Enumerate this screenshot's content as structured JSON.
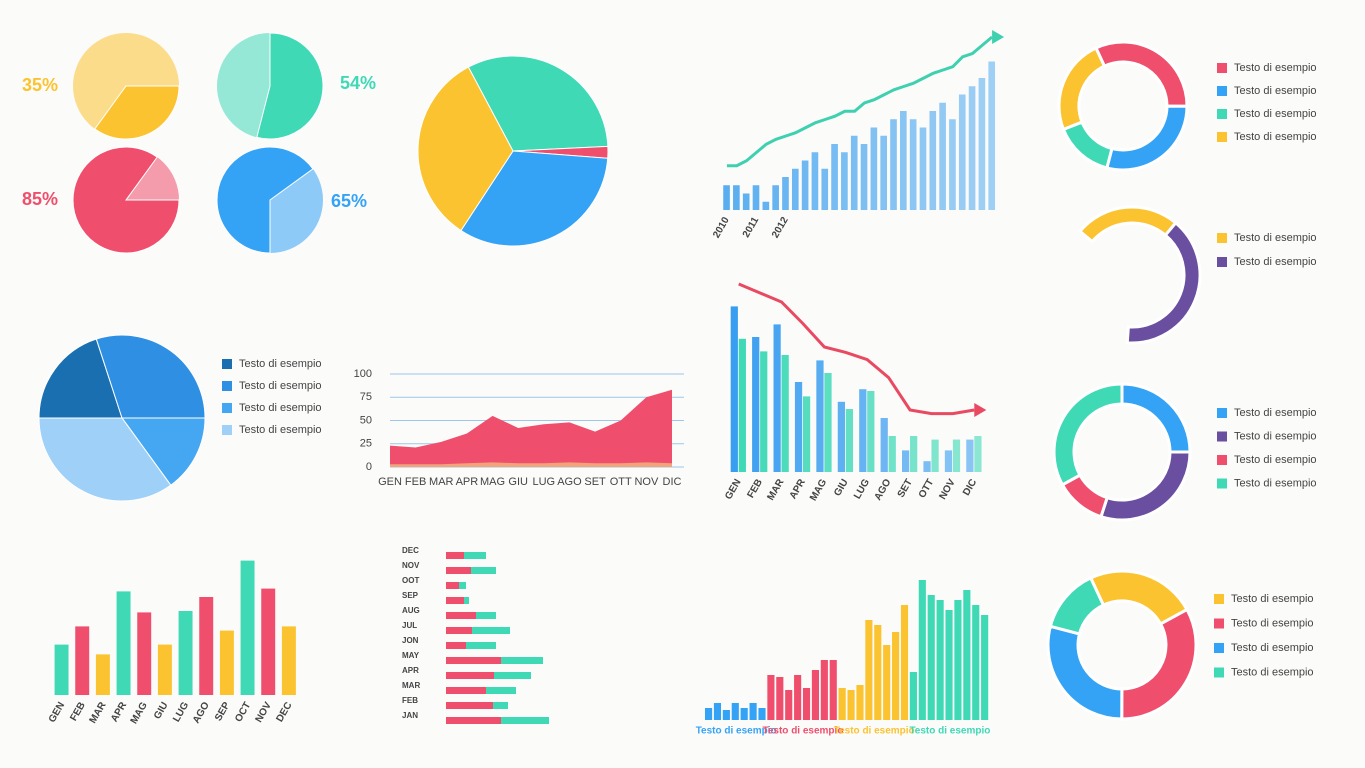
{
  "chart_data": [
    {
      "type": "pie",
      "values": [
        35
      ],
      "value_labels": [
        "35%"
      ],
      "color": "#fbc330"
    },
    {
      "type": "pie",
      "values": [
        54
      ],
      "value_labels": [
        "54%"
      ],
      "color": "#3fd9b6"
    },
    {
      "type": "pie",
      "values": [
        85
      ],
      "value_labels": [
        "85%"
      ],
      "color": "#ef4f6c"
    },
    {
      "type": "pie",
      "values": [
        65
      ],
      "value_labels": [
        "65%"
      ],
      "color": "#35a3f5"
    },
    {
      "type": "pie",
      "values": [
        32,
        2,
        33,
        33
      ],
      "colors": [
        "#3fd9b6",
        "#ef4f6c",
        "#35a3f5",
        "#fbc330"
      ]
    },
    {
      "type": "bar-line",
      "ylim": [
        0,
        100
      ],
      "categories": [
        "2010",
        null,
        null,
        "2011",
        null,
        null,
        "2012",
        null,
        null,
        null,
        null,
        null,
        null,
        null,
        null,
        null,
        null,
        null,
        null,
        null,
        null,
        null,
        null,
        null,
        null,
        null,
        null,
        null
      ],
      "series": [
        {
          "type": "bar",
          "color": "#5aaef0",
          "values": [
            15,
            15,
            10,
            15,
            5,
            15,
            20,
            25,
            30,
            35,
            25,
            40,
            35,
            45,
            40,
            50,
            45,
            55,
            60,
            55,
            50,
            60,
            65,
            55,
            70,
            75,
            80,
            90
          ]
        },
        {
          "type": "line",
          "color": "#3fd0b0",
          "values": [
            22,
            22,
            25,
            30,
            35,
            38,
            40,
            42,
            45,
            48,
            50,
            52,
            55,
            55,
            60,
            62,
            65,
            68,
            70,
            72,
            75,
            78,
            80,
            82,
            88,
            90,
            95,
            100
          ]
        }
      ]
    },
    {
      "type": "donut",
      "categories": [
        "Testo di esempio",
        "Testo di esempio",
        "Testo di esempio",
        "Testo di esempio"
      ],
      "colors": [
        "#ef4f6c",
        "#35a3f5",
        "#3fd9b6",
        "#fbc330"
      ],
      "values": [
        32,
        29,
        15,
        24
      ]
    },
    {
      "type": "donut",
      "categories": [
        "Testo di esempio",
        "Testo di esempio"
      ],
      "colors": [
        "#fbc330",
        "#6a4fa0"
      ],
      "values": [
        25,
        40
      ]
    },
    {
      "type": "pie",
      "categories": [
        "Testo di esempio",
        "Testo di esempio",
        "Testo di esempio",
        "Testo di esempio"
      ],
      "colors": [
        "#1a6fb0",
        "#2e8fe3",
        "#45a6f2",
        "#9fd0f7"
      ],
      "values": [
        20,
        30,
        15,
        35
      ]
    },
    {
      "type": "area",
      "categories": [
        "GEN",
        "FEB",
        "MAR",
        "APR",
        "MAG",
        "GIU",
        "LUG",
        "AGO",
        "SET",
        "OTT",
        "NOV",
        "DIC"
      ],
      "ylim": [
        0,
        100
      ],
      "yticks": [
        0,
        25,
        50,
        75,
        100
      ],
      "grid": true,
      "series": [
        {
          "color": "#ef4f6c",
          "values": [
            23,
            21,
            27,
            36,
            55,
            42,
            46,
            48,
            38,
            50,
            75,
            83
          ]
        },
        {
          "color": "#f3a37a",
          "values": [
            3,
            3,
            3,
            4,
            5,
            4,
            4,
            5,
            4,
            4,
            5,
            4
          ]
        }
      ]
    },
    {
      "type": "bar-line",
      "ylim": [
        0,
        100
      ],
      "categories": [
        "GEN",
        "FEB",
        "MAR",
        "APR",
        "MAG",
        "GIU",
        "LUG",
        "AGO",
        "SET",
        "OTT",
        "NOV",
        "DIC"
      ],
      "series": [
        {
          "type": "bar",
          "color": "#3a9ef0",
          "values": [
            92,
            75,
            82,
            50,
            62,
            39,
            46,
            30,
            12,
            6,
            12,
            18
          ]
        },
        {
          "type": "bar",
          "color": "#3fd9b6",
          "values": [
            74,
            67,
            65,
            42,
            55,
            35,
            45,
            20,
            20,
            18,
            18,
            20
          ]
        },
        {
          "type": "line",
          "color": "#e94a62",
          "values": [
            100,
            95,
            90,
            78,
            65,
            62,
            58,
            48,
            30,
            28,
            28,
            30
          ]
        }
      ]
    },
    {
      "type": "donut",
      "categories": [
        "Testo di esempio",
        "Testo di esempio",
        "Testo di esempio",
        "Testo di esempio"
      ],
      "colors": [
        "#35a3f5",
        "#6a4fa0",
        "#ef4f6c",
        "#3fd9b6"
      ],
      "values": [
        25,
        30,
        12,
        33
      ]
    },
    {
      "type": "donut",
      "categories": [
        "Testo di esempio",
        "Testo di esempio",
        "Testo di esempio",
        "Testo di esempio"
      ],
      "colors": [
        "#fbc330",
        "#ef4f6c",
        "#35a3f5",
        "#3fd9b6"
      ],
      "values": [
        24,
        33,
        29,
        14
      ]
    },
    {
      "type": "bar-line",
      "ylim": [
        0,
        100
      ],
      "categories": [
        "GEN",
        "FEB",
        "MAR",
        "APR",
        "MAG",
        "GIU",
        "LUG",
        "AGO",
        "SEP",
        "OCT",
        "NOV",
        "DEC"
      ],
      "series": [
        {
          "type": "bar",
          "colors": [
            "#3fd9b6",
            "#ef4f6c",
            "#fbc330",
            "#3fd9b6",
            "#ef4f6c",
            "#fbc330",
            "#3fd9b6",
            "#ef4f6c",
            "#fbc330",
            "#3fd9b6",
            "#ef4f6c",
            "#fbc330"
          ],
          "values": [
            36,
            49,
            29,
            74,
            59,
            36,
            60,
            70,
            46,
            96,
            76,
            49
          ]
        }
      ]
    },
    {
      "type": "hbar-stacked",
      "xlim": [
        0,
        110
      ],
      "categories": [
        "DEC",
        "NOV",
        "OOT",
        "SEP",
        "AUG",
        "JUL",
        "JON",
        "MAY",
        "APR",
        "MAR",
        "FEB",
        "JAN"
      ],
      "series": [
        {
          "color": "#ef4f6c",
          "values": [
            18,
            25,
            13,
            18,
            30,
            26,
            20,
            55,
            48,
            40,
            47,
            55
          ]
        },
        {
          "color": "#3fd9b6",
          "values": [
            22,
            25,
            7,
            5,
            20,
            38,
            30,
            42,
            37,
            30,
            15,
            48
          ]
        }
      ]
    },
    {
      "type": "bar-groups",
      "ylim": [
        0,
        150
      ],
      "series": [
        {
          "name": "Testo di esempio",
          "color": "#35a3f5",
          "values": [
            12,
            17,
            10,
            17,
            12,
            17,
            12
          ]
        },
        {
          "name": "Testo di esempio",
          "color": "#ef4f6c",
          "values": [
            45,
            43,
            30,
            45,
            32,
            50,
            60,
            60
          ]
        },
        {
          "name": "Testo di esempio",
          "color": "#fbc330",
          "values": [
            32,
            30,
            35,
            100,
            95,
            75,
            88,
            115
          ]
        },
        {
          "name": "Testo di esempio",
          "color": "#3fd9b6",
          "values": [
            48,
            140,
            125,
            120,
            110,
            120,
            130,
            115,
            105
          ]
        }
      ]
    }
  ]
}
